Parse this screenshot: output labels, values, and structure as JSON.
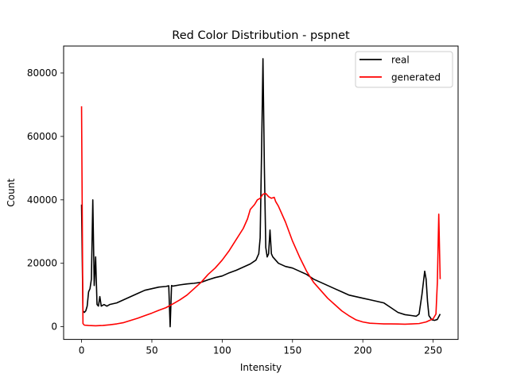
{
  "chart_data": {
    "type": "line",
    "title": "Red Color Distribution - pspnet",
    "xlabel": "Intensity",
    "ylabel": "Count",
    "xlim": [
      -12.75,
      267.75
    ],
    "ylim": [
      -4000,
      88500
    ],
    "xticks": [
      0,
      50,
      100,
      150,
      200,
      250
    ],
    "yticks": [
      0,
      20000,
      40000,
      60000,
      80000
    ],
    "grid": false,
    "legend_position": "top-right",
    "series": [
      {
        "name": "real",
        "color": "#000000",
        "points": [
          [
            0,
            38500
          ],
          [
            1,
            5000
          ],
          [
            2,
            4500
          ],
          [
            3,
            5000
          ],
          [
            4,
            6500
          ],
          [
            5,
            11000
          ],
          [
            6,
            12000
          ],
          [
            7,
            15000
          ],
          [
            8,
            40000
          ],
          [
            9,
            13000
          ],
          [
            10,
            22000
          ],
          [
            11,
            7000
          ],
          [
            12,
            6500
          ],
          [
            13,
            9500
          ],
          [
            14,
            6500
          ],
          [
            16,
            7000
          ],
          [
            18,
            6500
          ],
          [
            20,
            7000
          ],
          [
            25,
            7500
          ],
          [
            30,
            8500
          ],
          [
            35,
            9500
          ],
          [
            40,
            10500
          ],
          [
            45,
            11500
          ],
          [
            50,
            12000
          ],
          [
            55,
            12500
          ],
          [
            60,
            12700
          ],
          [
            62,
            12900
          ],
          [
            63,
            0
          ],
          [
            64,
            13000
          ],
          [
            65,
            12800
          ],
          [
            70,
            13200
          ],
          [
            75,
            13500
          ],
          [
            80,
            13700
          ],
          [
            85,
            14000
          ],
          [
            90,
            14800
          ],
          [
            95,
            15500
          ],
          [
            100,
            16000
          ],
          [
            105,
            17000
          ],
          [
            110,
            17800
          ],
          [
            115,
            18800
          ],
          [
            120,
            19800
          ],
          [
            124,
            21000
          ],
          [
            126,
            23000
          ],
          [
            127,
            28000
          ],
          [
            128,
            55000
          ],
          [
            129,
            84500
          ],
          [
            130,
            50000
          ],
          [
            131,
            25000
          ],
          [
            132,
            22000
          ],
          [
            133,
            23000
          ],
          [
            134,
            30500
          ],
          [
            135,
            23000
          ],
          [
            136,
            22000
          ],
          [
            140,
            20000
          ],
          [
            145,
            19000
          ],
          [
            150,
            18500
          ],
          [
            155,
            17500
          ],
          [
            160,
            16500
          ],
          [
            165,
            15000
          ],
          [
            170,
            14000
          ],
          [
            175,
            13000
          ],
          [
            180,
            12000
          ],
          [
            185,
            11000
          ],
          [
            190,
            10000
          ],
          [
            195,
            9500
          ],
          [
            200,
            9000
          ],
          [
            205,
            8500
          ],
          [
            210,
            8000
          ],
          [
            215,
            7500
          ],
          [
            220,
            6000
          ],
          [
            225,
            4500
          ],
          [
            230,
            3800
          ],
          [
            235,
            3500
          ],
          [
            238,
            3300
          ],
          [
            240,
            4000
          ],
          [
            242,
            10000
          ],
          [
            244,
            17500
          ],
          [
            245,
            15000
          ],
          [
            246,
            8000
          ],
          [
            247,
            3500
          ],
          [
            249,
            2200
          ],
          [
            251,
            2000
          ],
          [
            253,
            2300
          ],
          [
            255,
            4000
          ]
        ]
      },
      {
        "name": "generated",
        "color": "#ff0000",
        "points": [
          [
            0,
            69500
          ],
          [
            1,
            1000
          ],
          [
            2,
            500
          ],
          [
            5,
            400
          ],
          [
            10,
            300
          ],
          [
            15,
            400
          ],
          [
            20,
            600
          ],
          [
            25,
            900
          ],
          [
            30,
            1300
          ],
          [
            35,
            2000
          ],
          [
            40,
            2700
          ],
          [
            45,
            3500
          ],
          [
            50,
            4300
          ],
          [
            55,
            5200
          ],
          [
            60,
            6000
          ],
          [
            65,
            7200
          ],
          [
            70,
            8500
          ],
          [
            75,
            10000
          ],
          [
            80,
            12000
          ],
          [
            85,
            14000
          ],
          [
            90,
            16500
          ],
          [
            95,
            18500
          ],
          [
            100,
            21000
          ],
          [
            105,
            24000
          ],
          [
            110,
            27500
          ],
          [
            115,
            31000
          ],
          [
            118,
            34000
          ],
          [
            120,
            37000
          ],
          [
            123,
            38500
          ],
          [
            125,
            40000
          ],
          [
            127,
            40500
          ],
          [
            129,
            41800
          ],
          [
            131,
            42000
          ],
          [
            133,
            41000
          ],
          [
            135,
            40500
          ],
          [
            137,
            40800
          ],
          [
            138,
            39500
          ],
          [
            140,
            38000
          ],
          [
            145,
            33000
          ],
          [
            150,
            27000
          ],
          [
            155,
            22000
          ],
          [
            160,
            17500
          ],
          [
            165,
            14000
          ],
          [
            170,
            11500
          ],
          [
            175,
            9000
          ],
          [
            180,
            7000
          ],
          [
            185,
            5000
          ],
          [
            190,
            3500
          ],
          [
            195,
            2200
          ],
          [
            200,
            1500
          ],
          [
            205,
            1100
          ],
          [
            210,
            1000
          ],
          [
            215,
            900
          ],
          [
            220,
            900
          ],
          [
            225,
            850
          ],
          [
            230,
            800
          ],
          [
            235,
            900
          ],
          [
            240,
            1000
          ],
          [
            245,
            1500
          ],
          [
            250,
            2500
          ],
          [
            252,
            4000
          ],
          [
            253,
            14000
          ],
          [
            254,
            35500
          ],
          [
            255,
            15000
          ]
        ]
      }
    ]
  }
}
